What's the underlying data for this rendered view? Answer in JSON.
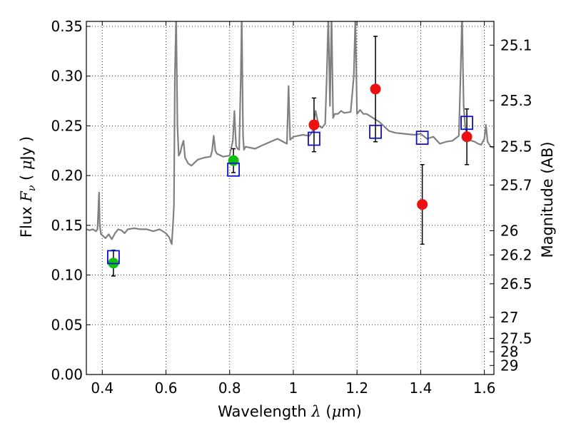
{
  "chart_data": {
    "type": "scatter",
    "xlabel_main": "Wavelength  ",
    "xlabel_symbol": "λ",
    "xlabel_unit_open": " (",
    "xlabel_unit_mu": "μ",
    "xlabel_unit_close": "m)",
    "ylabel_prefix": "Flux  ",
    "ylabel_symbol": "F",
    "ylabel_sub": "ν",
    "ylabel_mid": "  ( ",
    "ylabel_mu": "μ",
    "ylabel_unit": "Jy )",
    "y2label": "Magnitude (AB)",
    "xlim": [
      0.35,
      1.63
    ],
    "ylim": [
      0.0,
      0.355
    ],
    "grid": true,
    "x_ticks": [
      {
        "value": 0.4,
        "label": "0.4"
      },
      {
        "value": 0.6,
        "label": "0.6"
      },
      {
        "value": 0.8,
        "label": "0.8"
      },
      {
        "value": 1.0,
        "label": "1"
      },
      {
        "value": 1.2,
        "label": "1.2"
      },
      {
        "value": 1.4,
        "label": "1.4"
      },
      {
        "value": 1.6,
        "label": "1.6"
      }
    ],
    "y_ticks": [
      {
        "value": 0.0,
        "label": "0.00"
      },
      {
        "value": 0.05,
        "label": "0.05"
      },
      {
        "value": 0.1,
        "label": "0.10"
      },
      {
        "value": 0.15,
        "label": "0.15"
      },
      {
        "value": 0.2,
        "label": "0.20"
      },
      {
        "value": 0.25,
        "label": "0.25"
      },
      {
        "value": 0.3,
        "label": "0.30"
      },
      {
        "value": 0.35,
        "label": "0.35"
      }
    ],
    "mag_ticks": [
      {
        "flux": 0.3311,
        "label": "25.1"
      },
      {
        "flux": 0.2754,
        "label": "25.3"
      },
      {
        "flux": 0.2291,
        "label": "25.5"
      },
      {
        "flux": 0.1905,
        "label": "25.7"
      },
      {
        "flux": 0.1445,
        "label": "26"
      },
      {
        "flux": 0.1202,
        "label": "26.2"
      },
      {
        "flux": 0.0912,
        "label": "26.5"
      },
      {
        "flux": 0.0575,
        "label": "27"
      },
      {
        "flux": 0.0363,
        "label": "27.5"
      },
      {
        "flux": 0.0229,
        "label": "28"
      },
      {
        "flux": 0.0091,
        "label": "29"
      }
    ],
    "series": [
      {
        "type": "line",
        "color": "#808080",
        "x": [
          0.35,
          0.36,
          0.37,
          0.38,
          0.385,
          0.39,
          0.392,
          0.396,
          0.4,
          0.41,
          0.42,
          0.43,
          0.44,
          0.45,
          0.46,
          0.47,
          0.48,
          0.5,
          0.52,
          0.54,
          0.56,
          0.58,
          0.6,
          0.61,
          0.618,
          0.622,
          0.625,
          0.628,
          0.632,
          0.636,
          0.64,
          0.645,
          0.65,
          0.655,
          0.66,
          0.67,
          0.68,
          0.7,
          0.72,
          0.74,
          0.745,
          0.75,
          0.755,
          0.76,
          0.78,
          0.8,
          0.81,
          0.815,
          0.82,
          0.825,
          0.83,
          0.835,
          0.838,
          0.842,
          0.845,
          0.85,
          0.88,
          0.9,
          0.95,
          0.98,
          0.985,
          0.99,
          1.0,
          1.03,
          1.05,
          1.06,
          1.07,
          1.08,
          1.09,
          1.1,
          1.105,
          1.11,
          1.115,
          1.12,
          1.125,
          1.13,
          1.14,
          1.15,
          1.16,
          1.18,
          1.19,
          1.195,
          1.2,
          1.21,
          1.22,
          1.23,
          1.25,
          1.27,
          1.3,
          1.32,
          1.35,
          1.38,
          1.4,
          1.42,
          1.44,
          1.46,
          1.48,
          1.5,
          1.52,
          1.525,
          1.53,
          1.535,
          1.54,
          1.55,
          1.57,
          1.58,
          1.59,
          1.6,
          1.605,
          1.61,
          1.62,
          1.63
        ],
        "y": [
          0.146,
          0.145,
          0.146,
          0.144,
          0.146,
          0.183,
          0.15,
          0.141,
          0.14,
          0.137,
          0.141,
          0.136,
          0.142,
          0.146,
          0.145,
          0.142,
          0.146,
          0.147,
          0.146,
          0.146,
          0.144,
          0.146,
          0.142,
          0.138,
          0.131,
          0.15,
          0.17,
          0.3,
          0.36,
          0.25,
          0.22,
          0.223,
          0.23,
          0.235,
          0.218,
          0.212,
          0.21,
          0.216,
          0.218,
          0.219,
          0.225,
          0.24,
          0.225,
          0.222,
          0.219,
          0.22,
          0.235,
          0.265,
          0.23,
          0.227,
          0.226,
          0.3,
          0.36,
          0.24,
          0.226,
          0.229,
          0.227,
          0.23,
          0.237,
          0.232,
          0.29,
          0.236,
          0.239,
          0.241,
          0.24,
          0.244,
          0.265,
          0.25,
          0.248,
          0.252,
          0.3,
          0.36,
          0.27,
          0.36,
          0.258,
          0.262,
          0.262,
          0.265,
          0.263,
          0.264,
          0.3,
          0.36,
          0.262,
          0.266,
          0.262,
          0.262,
          0.258,
          0.254,
          0.245,
          0.243,
          0.242,
          0.241,
          0.242,
          0.237,
          0.239,
          0.232,
          0.234,
          0.235,
          0.24,
          0.3,
          0.36,
          0.27,
          0.248,
          0.236,
          0.234,
          0.232,
          0.231,
          0.237,
          0.251,
          0.234,
          0.229,
          0.228
        ]
      },
      {
        "type": "points",
        "name_key": "green",
        "color": "#10c010",
        "points": [
          {
            "x": 0.435,
            "y": 0.112,
            "err": 0.013
          },
          {
            "x": 0.812,
            "y": 0.215,
            "err": 0.012
          }
        ]
      },
      {
        "type": "points",
        "name_key": "red",
        "color": "#ee1010",
        "points": [
          {
            "x": 1.065,
            "y": 0.251,
            "err": 0.027
          },
          {
            "x": 1.258,
            "y": 0.287,
            "err": 0.053
          },
          {
            "x": 1.405,
            "y": 0.171,
            "err": 0.04
          },
          {
            "x": 1.545,
            "y": 0.239,
            "err": 0.028
          }
        ]
      },
      {
        "type": "open_squares",
        "color": "#1010d0",
        "points": [
          {
            "x": 0.435,
            "y": 0.118
          },
          {
            "x": 0.812,
            "y": 0.206
          },
          {
            "x": 1.065,
            "y": 0.237
          },
          {
            "x": 1.258,
            "y": 0.244
          },
          {
            "x": 1.405,
            "y": 0.238
          },
          {
            "x": 1.545,
            "y": 0.253
          }
        ]
      }
    ]
  }
}
